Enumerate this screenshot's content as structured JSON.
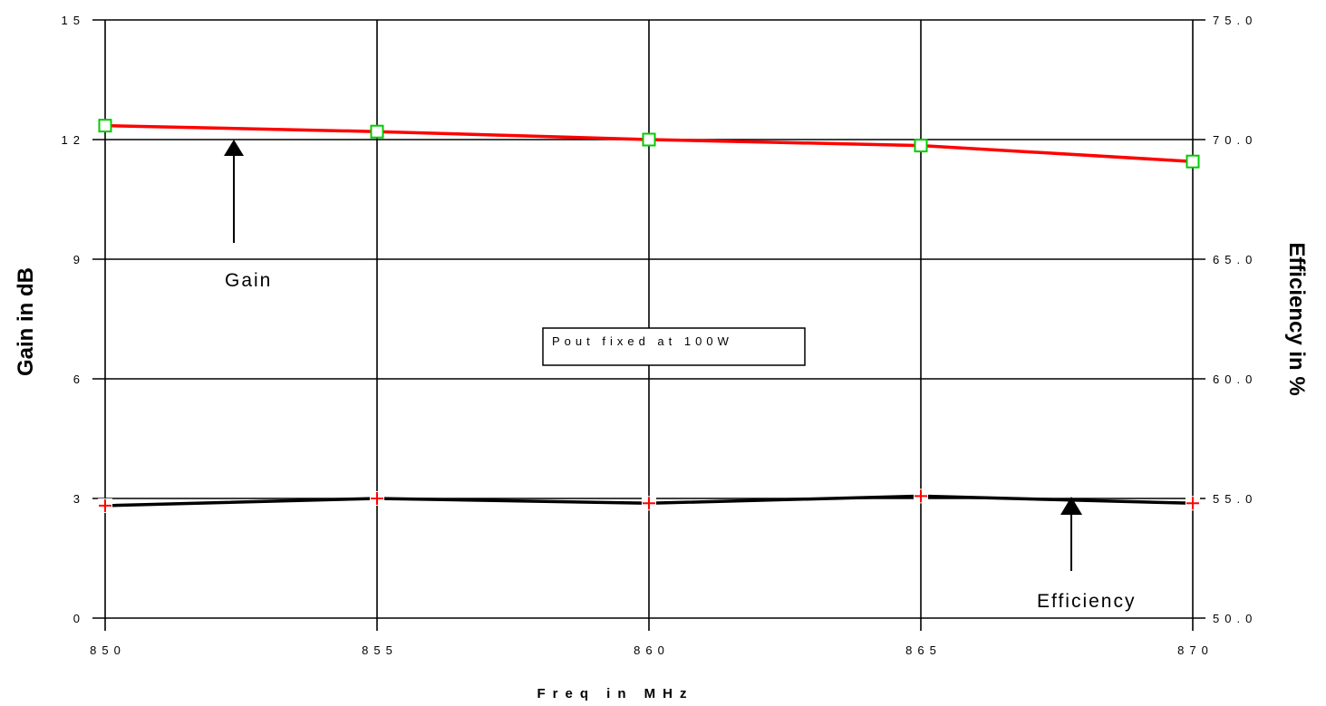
{
  "chart_data": {
    "type": "line",
    "title": "",
    "xlabel": "Freq in MHz",
    "ylabel_left": "Gain in dB",
    "ylabel_right": "Efficiency in %",
    "x": [
      850,
      855,
      860,
      865,
      870
    ],
    "x_tick_labels": [
      "850",
      "855",
      "860",
      "865",
      "870"
    ],
    "ylim_left": [
      0,
      15
    ],
    "y_left_tick_labels": [
      "0",
      "3",
      "6",
      "9",
      "12",
      "15"
    ],
    "ylim_right": [
      50,
      75
    ],
    "y_right_tick_labels": [
      "50.0",
      "55.0",
      "60.0",
      "65.0",
      "70.0",
      "75.0"
    ],
    "grid": true,
    "series": [
      {
        "axis": "left",
        "color": "#ff0000",
        "marker": "square",
        "marker_color": "#00cc00",
        "values": [
          12.35,
          12.2,
          12.0,
          11.85,
          11.45
        ]
      },
      {
        "axis": "right",
        "color": "#000000",
        "marker": "plus",
        "marker_color": "#ff0000",
        "values": [
          54.7,
          55.0,
          54.8,
          55.1,
          54.8
        ]
      }
    ],
    "annotations": {
      "gain_label": "Gain",
      "efficiency_label": "Efficiency",
      "note": "Pout fixed at 100W"
    }
  }
}
